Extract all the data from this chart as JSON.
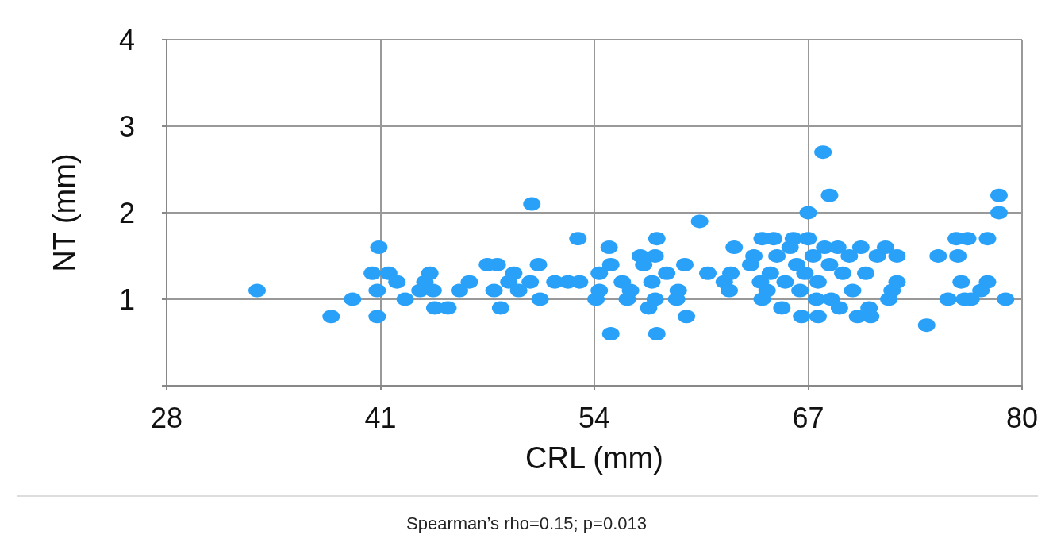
{
  "chart_data": {
    "type": "scatter",
    "xlabel": "CRL (mm)",
    "ylabel": "NT (mm)",
    "annotations": [
      "Spearman’s rho=0.15; p=0.013"
    ],
    "xlim": [
      28,
      80
    ],
    "xticks": [
      28,
      41,
      54,
      67,
      80
    ],
    "ylim": [
      0,
      4
    ],
    "yticks": [
      {
        "value": 0,
        "label": null
      },
      1,
      2,
      3,
      4
    ],
    "grid": true,
    "marker": "circle",
    "series": [
      {
        "color": "#29a1f9",
        "x": [
          33.5,
          38.0,
          39.3,
          40.9,
          40.5,
          41.5,
          40.8,
          40.8,
          42.0,
          42.5,
          43.4,
          44.0,
          43.7,
          44.3,
          45.1,
          44.2,
          45.8,
          46.4,
          47.5,
          48.1,
          47.9,
          48.3,
          49.1,
          48.8,
          49.4,
          50.1,
          50.2,
          50.6,
          50.7,
          51.6,
          52.4,
          53.1,
          53.0,
          54.1,
          54.3,
          54.3,
          54.9,
          55.0,
          55.0,
          55.7,
          56.0,
          56.2,
          56.8,
          57.0,
          57.3,
          57.5,
          57.8,
          57.7,
          57.7,
          57.8,
          58.4,
          59.5,
          59.1,
          59.0,
          59.6,
          60.4,
          60.9,
          61.9,
          62.2,
          62.5,
          62.3,
          63.5,
          63.7,
          64.2,
          64.9,
          64.1,
          64.2,
          64.5,
          64.7,
          65.1,
          65.4,
          65.6,
          65.9,
          66.1,
          66.3,
          66.5,
          66.8,
          67.0,
          66.6,
          67.6,
          67.0,
          67.3,
          67.6,
          67.5,
          67.9,
          68.3,
          68.0,
          68.3,
          68.4,
          68.8,
          68.9,
          69.1,
          69.5,
          69.7,
          70.0,
          70.2,
          70.5,
          70.7,
          70.8,
          71.2,
          71.7,
          71.9,
          72.1,
          72.4,
          72.4,
          74.2,
          74.9,
          75.5,
          76.0,
          76.1,
          76.3,
          76.5,
          76.7,
          76.9,
          77.9,
          77.9,
          78.6,
          78.6,
          79.0,
          77.5
        ],
        "values": [
          1.1,
          0.8,
          1.0,
          1.6,
          1.3,
          1.3,
          1.1,
          0.8,
          1.2,
          1.0,
          1.1,
          1.3,
          1.2,
          0.9,
          0.9,
          1.1,
          1.1,
          1.2,
          1.4,
          1.4,
          1.1,
          0.9,
          1.3,
          1.2,
          1.1,
          1.2,
          2.1,
          1.4,
          1.0,
          1.2,
          1.2,
          1.2,
          1.7,
          1.0,
          1.1,
          1.3,
          1.6,
          1.4,
          0.6,
          1.2,
          1.0,
          1.1,
          1.5,
          1.4,
          0.9,
          1.2,
          1.7,
          1.5,
          1.0,
          0.6,
          1.3,
          1.4,
          1.1,
          1.0,
          0.8,
          1.9,
          1.3,
          1.2,
          1.1,
          1.6,
          1.3,
          1.4,
          1.5,
          1.7,
          1.7,
          1.2,
          1.0,
          1.1,
          1.3,
          1.5,
          0.9,
          1.2,
          1.6,
          1.7,
          1.4,
          1.1,
          1.3,
          2.0,
          0.8,
          0.8,
          1.7,
          1.5,
          1.2,
          1.0,
          2.7,
          2.2,
          1.6,
          1.4,
          1.0,
          1.6,
          0.9,
          1.3,
          1.5,
          1.1,
          0.8,
          1.6,
          1.3,
          0.9,
          0.8,
          1.5,
          1.6,
          1.0,
          1.1,
          1.2,
          1.5,
          0.7,
          1.5,
          1.0,
          1.7,
          1.5,
          1.2,
          1.0,
          1.7,
          1.0,
          1.7,
          1.2,
          2.2,
          2.0,
          1.0,
          1.1
        ]
      }
    ]
  }
}
